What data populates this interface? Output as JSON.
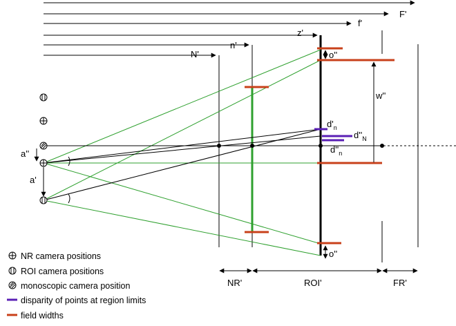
{
  "labels": {
    "F_prime": "F'",
    "f_prime": "f'",
    "z_prime": "z'",
    "N_prime": "N'",
    "n_prime": "n'",
    "o_dd_top": "o''",
    "o_dd_bottom": "o''",
    "w_dd": "w''",
    "a_dd": "a''",
    "a_prime": "a'",
    "d_n": {
      "base": "d'",
      "sub": "n"
    },
    "d_dd_N": {
      "base": "d''",
      "sub": "N"
    },
    "d_dd_n": {
      "base": "d''",
      "sub": "n"
    },
    "NR_prime": "NR'",
    "ROI_prime": "ROI'",
    "FR_prime": "FR'"
  },
  "legend": [
    {
      "icon": "cross-circle-icon",
      "text": "NR camera positions"
    },
    {
      "icon": "double-bar-circle-icon",
      "text": "ROI camera positions"
    },
    {
      "icon": "hatched-circle-icon",
      "text": "monoscopic camera position"
    },
    {
      "icon": "purple-line-icon",
      "text": "disparity of points at region limits",
      "color": "#5a1fb5"
    },
    {
      "icon": "orange-line-icon",
      "text": "field widths",
      "color": "#c8401a"
    }
  ],
  "colors": {
    "green": "#2ea02e",
    "orange": "#c8401a",
    "purple": "#5a1fb5",
    "black": "#000000"
  }
}
